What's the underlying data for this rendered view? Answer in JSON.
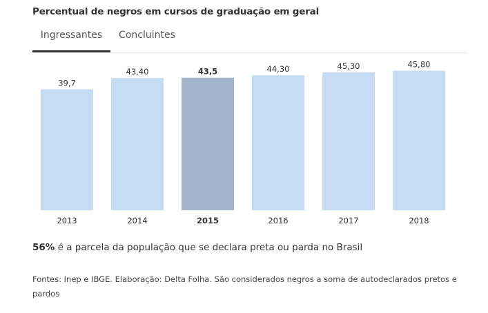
{
  "title": "Percentual de negros em cursos de graduação em geral",
  "tabs": [
    {
      "label": "Ingressantes",
      "active": true
    },
    {
      "label": "Concluintes",
      "active": false
    }
  ],
  "colors": {
    "bar": "#c6dbf4",
    "highlight": "#a3b4cb",
    "tab_indicator": "#333333"
  },
  "chart_data": {
    "type": "bar",
    "categories": [
      "2013",
      "2014",
      "2015",
      "2016",
      "2017",
      "2018"
    ],
    "values": [
      39.7,
      43.4,
      43.5,
      44.3,
      45.3,
      45.8
    ],
    "value_labels": [
      "39,7",
      "43,40",
      "43,5",
      "44,30",
      "45,30",
      "45,80"
    ],
    "highlight": "2015",
    "ylim": [
      0,
      50
    ],
    "grid": false,
    "title": "Percentual de negros em cursos de graduação em geral",
    "xlabel": "",
    "ylabel": ""
  },
  "note": {
    "bold": "56%",
    "text": " é a parcela da população que se declara preta ou parda no Brasil"
  },
  "source": "Fontes: Inep e IBGE. Elaboração: Delta Folha. São considerados negros a soma de autodeclarados pretos e pardos"
}
